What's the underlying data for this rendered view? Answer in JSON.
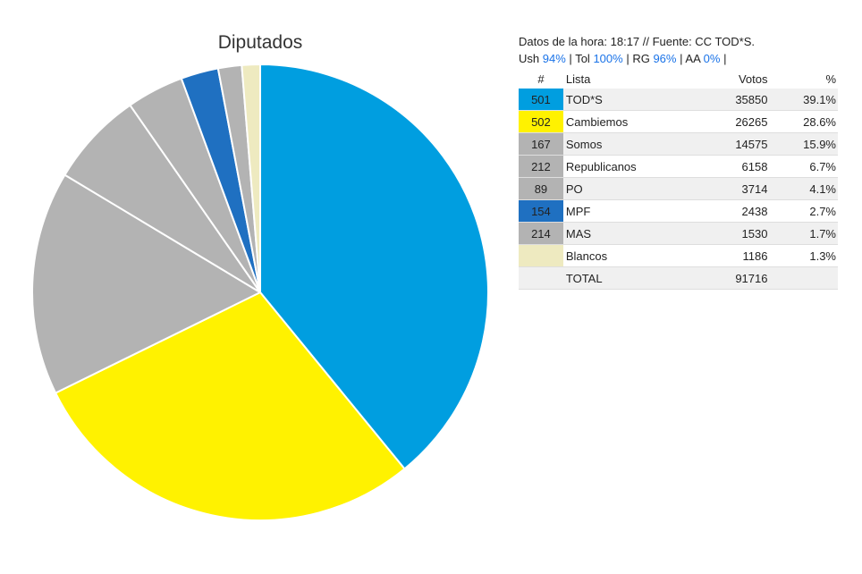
{
  "chart_data": {
    "type": "pie",
    "title": "Diputados",
    "series": [
      {
        "num": "501",
        "name": "TOD*S",
        "votes": 35850,
        "votes_text": "35850",
        "pct_text": "39.1%",
        "color": "#009ee0"
      },
      {
        "num": "502",
        "name": "Cambiemos",
        "votes": 26265,
        "votes_text": "26265",
        "pct_text": "28.6%",
        "color": "#fff200"
      },
      {
        "num": "167",
        "name": "Somos",
        "votes": 14575,
        "votes_text": "14575",
        "pct_text": "15.9%",
        "color": "#b3b3b3"
      },
      {
        "num": "212",
        "name": "Republicanos",
        "votes": 6158,
        "votes_text": "6158",
        "pct_text": "6.7%",
        "color": "#b3b3b3"
      },
      {
        "num": "89",
        "name": "PO",
        "votes": 3714,
        "votes_text": "3714",
        "pct_text": "4.1%",
        "color": "#b3b3b3"
      },
      {
        "num": "154",
        "name": "MPF",
        "votes": 2438,
        "votes_text": "2438",
        "pct_text": "2.7%",
        "color": "#1f70c1"
      },
      {
        "num": "214",
        "name": "MAS",
        "votes": 1530,
        "votes_text": "1530",
        "pct_text": "1.7%",
        "color": "#b3b3b3"
      },
      {
        "num": "",
        "name": "Blancos",
        "votes": 1186,
        "votes_text": "1186",
        "pct_text": "1.3%",
        "color": "#eeeac0"
      }
    ]
  },
  "info": {
    "line1": "Datos de la hora: 18:17 // Fuente: CC TOD*S.",
    "ush_label": "Ush",
    "ush_value": "94%",
    "tol_label": "Tol",
    "tol_value": "100%",
    "rg_label": "RG",
    "rg_value": "96%",
    "aa_label": "AA",
    "aa_value": "0%",
    "sep": "|"
  },
  "table": {
    "headers": {
      "num": "#",
      "name": "Lista",
      "votes": "Votos",
      "pct": "%"
    },
    "total_label": "TOTAL",
    "total_votes": "91716"
  }
}
